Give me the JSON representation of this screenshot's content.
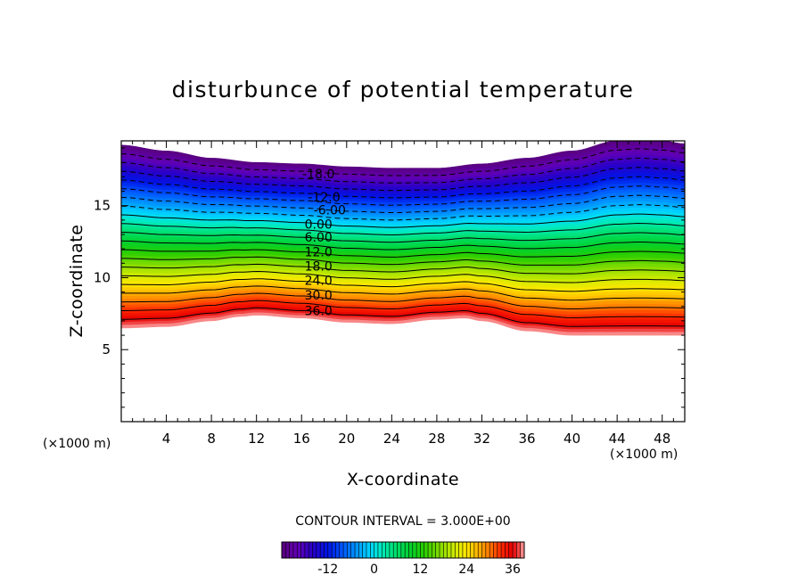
{
  "chart_data": {
    "type": "contour",
    "title": "disturbunce of potential temperature",
    "xlabel": "X-coordinate",
    "ylabel": "Z-coordinate",
    "x_unit": "(×1000 m)",
    "y_unit": "(×1000 m)",
    "xlim": [
      0,
      50
    ],
    "ylim": [
      0,
      19.5
    ],
    "x_ticks": [
      4,
      8,
      12,
      16,
      20,
      24,
      28,
      32,
      36,
      40,
      44,
      48
    ],
    "y_ticks": [
      5,
      10,
      15
    ],
    "grid": false,
    "bottom_boundary": [
      [
        0,
        6.5
      ],
      [
        4,
        6.6
      ],
      [
        8,
        7.0
      ],
      [
        10.5,
        7.3
      ],
      [
        12,
        7.4
      ],
      [
        16,
        7.2
      ],
      [
        20,
        6.9
      ],
      [
        24,
        6.8
      ],
      [
        28,
        7.1
      ],
      [
        30.5,
        7.2
      ],
      [
        32,
        7.0
      ],
      [
        36,
        6.3
      ],
      [
        40,
        6.0
      ],
      [
        44,
        6.0
      ],
      [
        48,
        6.0
      ],
      [
        50,
        6.0
      ]
    ],
    "top_boundary": [
      [
        0,
        19.2
      ],
      [
        4,
        18.8
      ],
      [
        8,
        18.3
      ],
      [
        12,
        18.0
      ],
      [
        16,
        17.9
      ],
      [
        20,
        17.7
      ],
      [
        24,
        17.6
      ],
      [
        28,
        17.6
      ],
      [
        32,
        17.9
      ],
      [
        36,
        18.3
      ],
      [
        40,
        18.8
      ],
      [
        44,
        19.5
      ],
      [
        46,
        19.6
      ],
      [
        48,
        19.5
      ],
      [
        50,
        19.3
      ]
    ],
    "contour_interval": 3.0,
    "contour_interval_label": "CONTOUR INTERVAL = 3.000E+00",
    "value_range": [
      -24,
      39
    ],
    "contour_labels": [
      {
        "value": -18,
        "text": "-18.0",
        "x": 17.5,
        "z": 17.2
      },
      {
        "value": -12,
        "text": "-12.0",
        "x": 18.0,
        "z": 15.6
      },
      {
        "value": -6,
        "text": "-6.00",
        "x": 18.5,
        "z": 14.7
      },
      {
        "value": 0,
        "text": "0.00",
        "x": 17.5,
        "z": 13.7
      },
      {
        "value": 6,
        "text": "6.00",
        "x": 17.5,
        "z": 12.8
      },
      {
        "value": 12,
        "text": "12.0",
        "x": 17.5,
        "z": 11.8
      },
      {
        "value": 18,
        "text": "18.0",
        "x": 17.5,
        "z": 10.8
      },
      {
        "value": 24,
        "text": "24.0",
        "x": 17.5,
        "z": 9.8
      },
      {
        "value": 30,
        "text": "30.0",
        "x": 17.5,
        "z": 8.8
      },
      {
        "value": 36,
        "text": "36.0",
        "x": 17.5,
        "z": 7.7
      }
    ],
    "colorbar": {
      "ticks": [
        {
          "value": -12,
          "text": "-12"
        },
        {
          "value": 0,
          "text": "0"
        },
        {
          "value": 12,
          "text": "12"
        },
        {
          "value": 24,
          "text": "24"
        },
        {
          "value": 36,
          "text": "36"
        }
      ],
      "range": [
        -24,
        39
      ]
    }
  }
}
